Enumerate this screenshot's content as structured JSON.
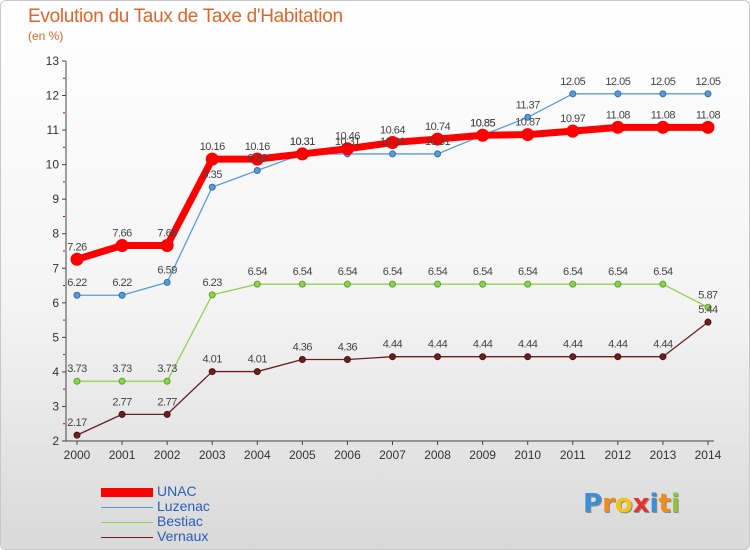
{
  "chart_data": {
    "type": "line",
    "title": "Evolution du Taux de Taxe d'Habitation",
    "subtitle": "(en %)",
    "x": [
      "2000",
      "2001",
      "2002",
      "2003",
      "2004",
      "2005",
      "2006",
      "2007",
      "2008",
      "2009",
      "2010",
      "2011",
      "2012",
      "2013",
      "2014"
    ],
    "ylim": [
      2,
      13
    ],
    "yticks": [
      2,
      3,
      4,
      5,
      6,
      7,
      8,
      9,
      10,
      11,
      12,
      13
    ],
    "grid": false,
    "legend_position": "bottom-left",
    "series": [
      {
        "name": "UNAC",
        "color": "#ff0000",
        "values": [
          7.26,
          7.66,
          7.66,
          10.16,
          10.16,
          10.31,
          10.46,
          10.64,
          10.74,
          10.85,
          10.87,
          10.97,
          11.08,
          11.08,
          11.08
        ],
        "labels": [
          "7.26",
          "7.66",
          "7.66",
          "10.16",
          "10.16",
          "10.31",
          "10.46",
          "10.64",
          "10.74",
          "10.85",
          "10.87",
          "10.97",
          "11.08",
          "11.08",
          "11.08"
        ]
      },
      {
        "name": "Luzenac",
        "color": "#5a9bd5",
        "values": [
          6.22,
          6.22,
          6.59,
          9.35,
          9.83,
          10.31,
          10.31,
          10.31,
          10.31,
          10.85,
          11.37,
          12.05,
          12.05,
          12.05,
          12.05
        ],
        "labels": [
          "6.22",
          "6.22",
          "6.59",
          "9.35",
          "9.83",
          "10.31",
          "10.31",
          "10.31",
          "10.31",
          "10.85",
          "11.37",
          "12.05",
          "12.05",
          "12.05",
          "12.05"
        ]
      },
      {
        "name": "Bestiac",
        "color": "#8fd14f",
        "values": [
          3.73,
          3.73,
          3.73,
          6.23,
          6.54,
          6.54,
          6.54,
          6.54,
          6.54,
          6.54,
          6.54,
          6.54,
          6.54,
          6.54,
          5.87
        ],
        "labels": [
          "3.73",
          "3.73",
          "3.73",
          "6.23",
          "6.54",
          "6.54",
          "6.54",
          "6.54",
          "6.54",
          "6.54",
          "6.54",
          "6.54",
          "6.54",
          "6.54",
          "5.87"
        ]
      },
      {
        "name": "Vernaux",
        "color": "#6b1f1f",
        "values": [
          2.17,
          2.77,
          2.77,
          4.01,
          4.01,
          4.36,
          4.36,
          4.44,
          4.44,
          4.44,
          4.44,
          4.44,
          4.44,
          4.44,
          5.44
        ],
        "labels": [
          "2.17",
          "2.77",
          "2.77",
          "4.01",
          "4.01",
          "4.36",
          "4.36",
          "4.44",
          "4.44",
          "4.44",
          "4.44",
          "4.44",
          "4.44",
          "4.44",
          "5.44"
        ]
      }
    ]
  },
  "brand": {
    "logo_letters": [
      "P",
      "r",
      "o",
      "x",
      "i",
      "t",
      "i"
    ],
    "logo_colors": [
      "#3a8fd8",
      "#f08c1e",
      "#f0c419",
      "#e8332a",
      "#3a8fd8",
      "#f08c1e",
      "#8fc43f"
    ]
  }
}
